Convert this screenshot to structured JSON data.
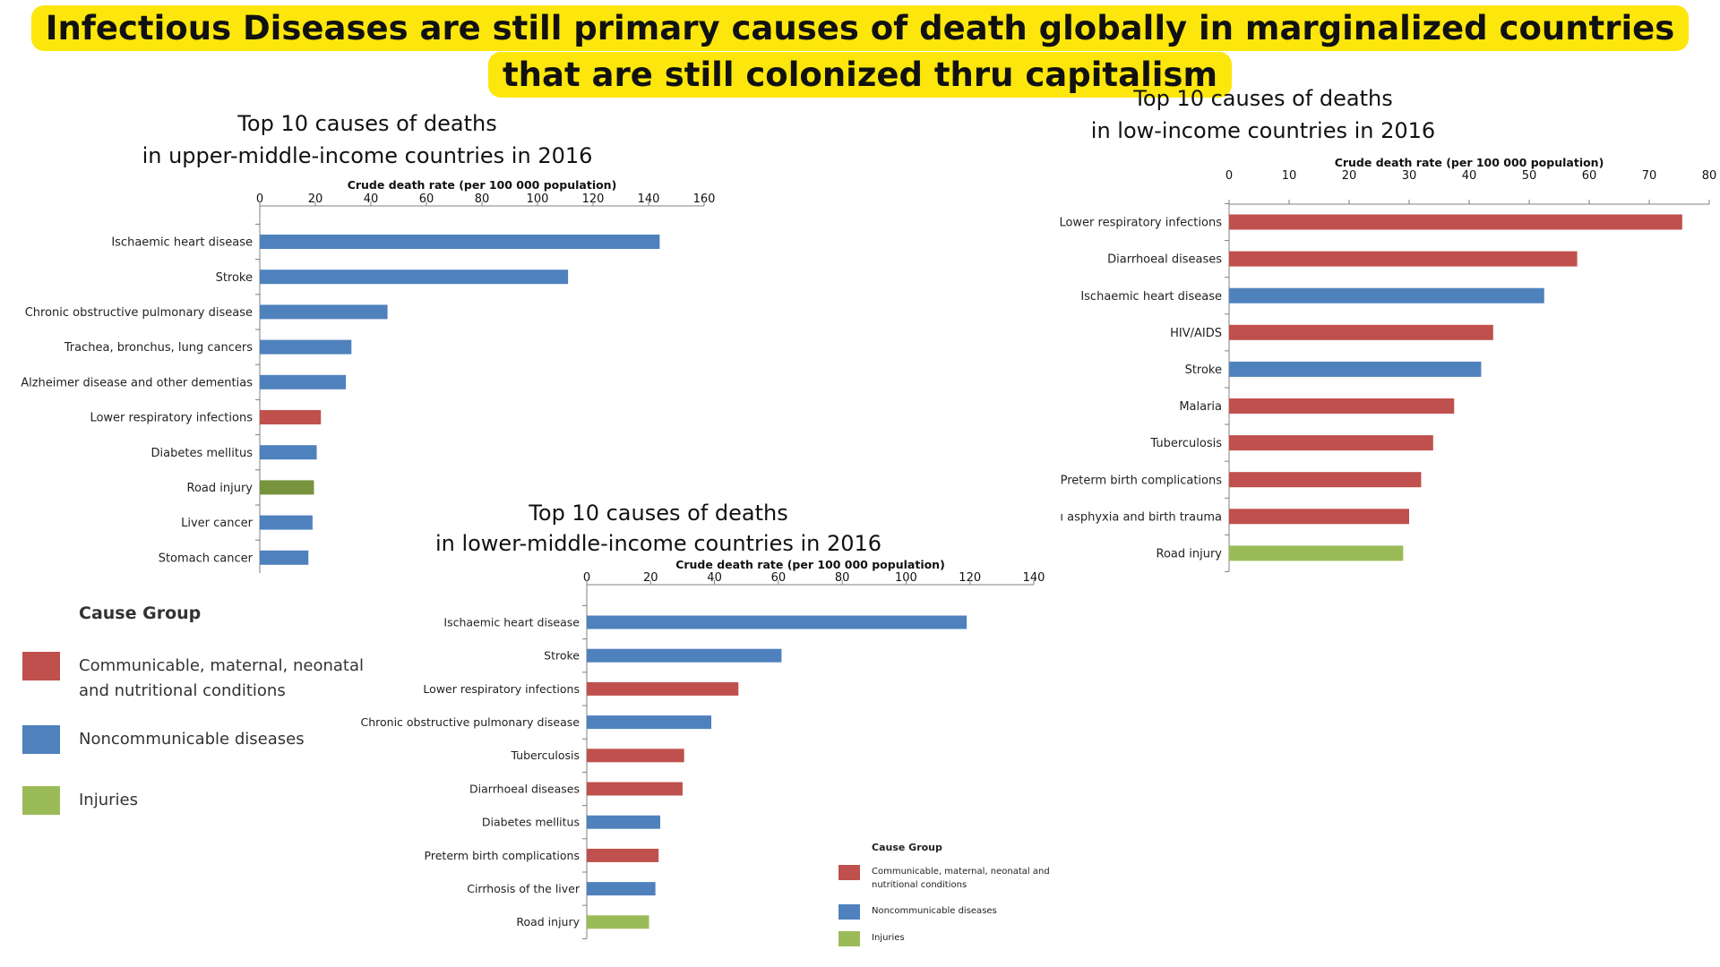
{
  "headline": "Infectious Diseases are still primary causes of death globally in marginalized countries that are still colonized thru capitalism",
  "colors": {
    "communicable": "#c0504d",
    "noncommunicable": "#4f81bd",
    "injuries": "#9bbb59",
    "injuries_dark": "#77933c",
    "axis": "#808080"
  },
  "legend_big": {
    "title": "Cause Group",
    "items": [
      {
        "label": "Communicable, maternal, neonatal and nutritional conditions",
        "color": "#c0504d"
      },
      {
        "label": "Noncommunicable diseases",
        "color": "#4f81bd"
      },
      {
        "label": "Injuries",
        "color": "#9bbb59"
      }
    ]
  },
  "legend_small": {
    "title": "Cause Group",
    "items": [
      {
        "label": "Communicable, maternal, neonatal and nutritional conditions",
        "color": "#c0504d"
      },
      {
        "label": "Noncommunicable diseases",
        "color": "#4f81bd"
      },
      {
        "label": "Injuries",
        "color": "#9bbb59"
      }
    ]
  },
  "chart_data": [
    {
      "type": "bar",
      "orientation": "horizontal",
      "title_line1": "Top 10 causes of deaths",
      "title_line2": "in upper-middle-income countries in 2016",
      "xlabel": "Crude death rate (per 100 000 population)",
      "xlim": [
        0,
        160
      ],
      "ticks": [
        0,
        20,
        40,
        60,
        80,
        100,
        120,
        140,
        160
      ],
      "categories": [
        "Ischaemic heart disease",
        "Stroke",
        "Chronic obstructive pulmonary disease",
        "Trachea, bronchus, lung cancers",
        "Alzheimer disease and other dementias",
        "Lower respiratory infections",
        "Diabetes mellitus",
        "Road injury",
        "Liver cancer",
        "Stomach cancer"
      ],
      "values": [
        144,
        111,
        46,
        33,
        31,
        22,
        20.5,
        19.5,
        19,
        17.5
      ],
      "groups": [
        "noncommunicable",
        "noncommunicable",
        "noncommunicable",
        "noncommunicable",
        "noncommunicable",
        "communicable",
        "noncommunicable",
        "injuries_dark",
        "noncommunicable",
        "noncommunicable"
      ]
    },
    {
      "type": "bar",
      "orientation": "horizontal",
      "title_line1": "Top 10 causes of deaths",
      "title_line2": "in lower-middle-income countries in 2016",
      "xlabel": "Crude death rate (per 100 000 population)",
      "xlim": [
        0,
        140
      ],
      "ticks": [
        0,
        20,
        40,
        60,
        80,
        100,
        120,
        140
      ],
      "categories": [
        "Ischaemic heart disease",
        "Stroke",
        "Lower respiratory infections",
        "Chronic obstructive pulmonary disease",
        "Tuberculosis",
        "Diarrhoeal diseases",
        "Diabetes mellitus",
        "Preterm birth complications",
        "Cirrhosis of the liver",
        "Road injury"
      ],
      "values": [
        119,
        61,
        47.5,
        39,
        30.5,
        30,
        23,
        22.5,
        21.5,
        19.5
      ],
      "groups": [
        "noncommunicable",
        "noncommunicable",
        "communicable",
        "noncommunicable",
        "communicable",
        "communicable",
        "noncommunicable",
        "communicable",
        "noncommunicable",
        "injuries"
      ]
    },
    {
      "type": "bar",
      "orientation": "horizontal",
      "title_line1": "Top 10 causes of deaths",
      "title_line2": "in low-income countries in 2016",
      "xlabel": "Crude death rate (per 100 000 population)",
      "xlim": [
        0,
        80
      ],
      "ticks": [
        0,
        10,
        20,
        30,
        40,
        50,
        60,
        70,
        80
      ],
      "categories": [
        "Lower respiratory infections",
        "Diarrhoeal diseases",
        "Ischaemic heart disease",
        "HIV/AIDS",
        "Stroke",
        "Malaria",
        "Tuberculosis",
        "Preterm birth complications",
        "ı asphyxia and birth trauma",
        "Road injury"
      ],
      "values": [
        75.5,
        58,
        52.5,
        44,
        42,
        37.5,
        34,
        32,
        30,
        29
      ],
      "groups": [
        "communicable",
        "communicable",
        "noncommunicable",
        "communicable",
        "noncommunicable",
        "communicable",
        "communicable",
        "communicable",
        "communicable",
        "injuries"
      ]
    }
  ]
}
